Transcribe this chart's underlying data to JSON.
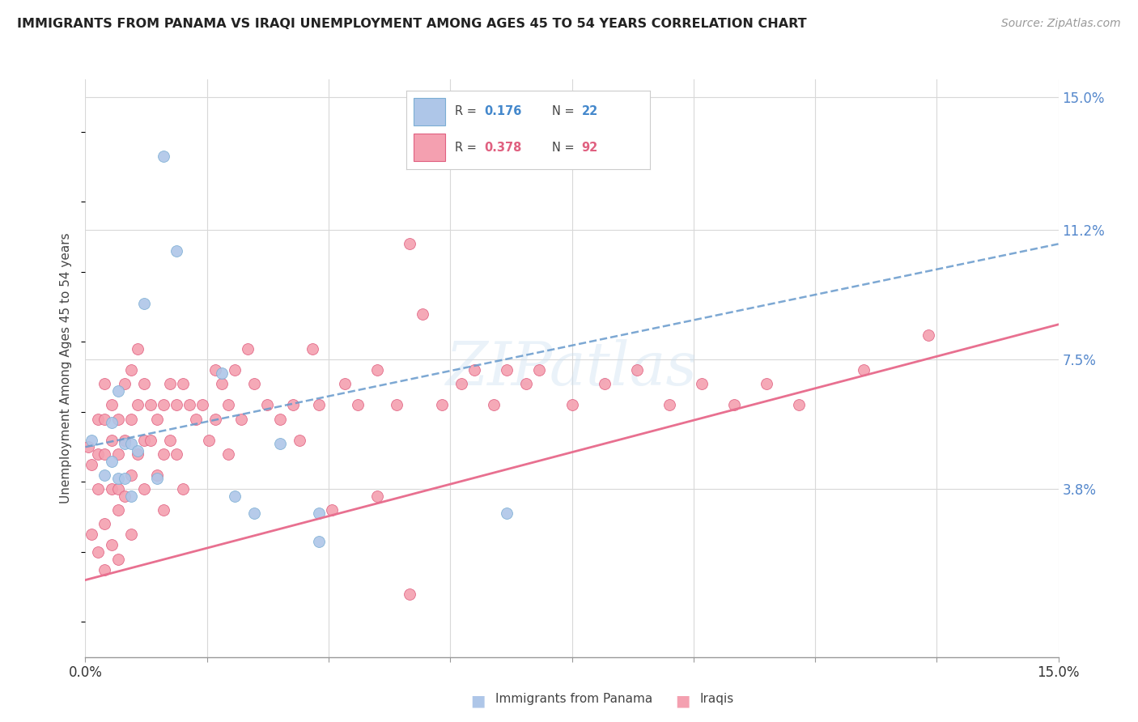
{
  "title": "IMMIGRANTS FROM PANAMA VS IRAQI UNEMPLOYMENT AMONG AGES 45 TO 54 YEARS CORRELATION CHART",
  "source": "Source: ZipAtlas.com",
  "ylabel": "Unemployment Among Ages 45 to 54 years",
  "xlim": [
    0.0,
    0.15
  ],
  "ylim": [
    -0.01,
    0.155
  ],
  "plot_ylim": [
    -0.01,
    0.155
  ],
  "ytick_labels_right": [
    "3.8%",
    "7.5%",
    "11.2%",
    "15.0%"
  ],
  "ytick_vals_right": [
    0.038,
    0.075,
    0.112,
    0.15
  ],
  "watermark": "ZIPatlas",
  "panama_color": "#aec6e8",
  "iraqi_color": "#f4a0b0",
  "panama_edge": "#7baed4",
  "iraqi_edge": "#e06080",
  "trend_panama_color": "#6699cc",
  "trend_iraqi_color": "#e87090",
  "background_color": "#ffffff",
  "grid_color": "#d8d8d8",
  "pan_trend_y0": 0.05,
  "pan_trend_y1": 0.108,
  "irq_trend_y0": 0.012,
  "irq_trend_y1": 0.085,
  "panama_scatter_x": [
    0.001,
    0.003,
    0.004,
    0.004,
    0.005,
    0.005,
    0.006,
    0.006,
    0.007,
    0.007,
    0.008,
    0.009,
    0.011,
    0.012,
    0.014,
    0.021,
    0.023,
    0.026,
    0.03,
    0.036,
    0.036,
    0.065
  ],
  "panama_scatter_y": [
    0.052,
    0.042,
    0.046,
    0.057,
    0.041,
    0.066,
    0.041,
    0.051,
    0.036,
    0.051,
    0.049,
    0.091,
    0.041,
    0.133,
    0.106,
    0.071,
    0.036,
    0.031,
    0.051,
    0.031,
    0.023,
    0.031
  ],
  "iraqi_scatter_x": [
    0.0005,
    0.001,
    0.001,
    0.002,
    0.002,
    0.002,
    0.002,
    0.003,
    0.003,
    0.003,
    0.003,
    0.003,
    0.004,
    0.004,
    0.004,
    0.004,
    0.005,
    0.005,
    0.005,
    0.005,
    0.005,
    0.006,
    0.006,
    0.006,
    0.007,
    0.007,
    0.007,
    0.007,
    0.008,
    0.008,
    0.008,
    0.009,
    0.009,
    0.009,
    0.01,
    0.01,
    0.011,
    0.011,
    0.012,
    0.012,
    0.012,
    0.013,
    0.013,
    0.014,
    0.014,
    0.015,
    0.015,
    0.016,
    0.017,
    0.018,
    0.019,
    0.02,
    0.02,
    0.021,
    0.022,
    0.022,
    0.023,
    0.024,
    0.025,
    0.026,
    0.028,
    0.03,
    0.032,
    0.033,
    0.035,
    0.036,
    0.038,
    0.04,
    0.042,
    0.045,
    0.048,
    0.05,
    0.052,
    0.055,
    0.058,
    0.06,
    0.063,
    0.065,
    0.068,
    0.07,
    0.075,
    0.08,
    0.085,
    0.09,
    0.095,
    0.1,
    0.105,
    0.11,
    0.12,
    0.13,
    0.045,
    0.05
  ],
  "iraqi_scatter_y": [
    0.05,
    0.045,
    0.025,
    0.058,
    0.048,
    0.038,
    0.02,
    0.068,
    0.058,
    0.048,
    0.028,
    0.015,
    0.062,
    0.052,
    0.038,
    0.022,
    0.038,
    0.058,
    0.048,
    0.032,
    0.018,
    0.068,
    0.052,
    0.036,
    0.072,
    0.058,
    0.042,
    0.025,
    0.078,
    0.062,
    0.048,
    0.068,
    0.052,
    0.038,
    0.062,
    0.052,
    0.058,
    0.042,
    0.062,
    0.048,
    0.032,
    0.068,
    0.052,
    0.062,
    0.048,
    0.068,
    0.038,
    0.062,
    0.058,
    0.062,
    0.052,
    0.072,
    0.058,
    0.068,
    0.062,
    0.048,
    0.072,
    0.058,
    0.078,
    0.068,
    0.062,
    0.058,
    0.062,
    0.052,
    0.078,
    0.062,
    0.032,
    0.068,
    0.062,
    0.072,
    0.062,
    0.108,
    0.088,
    0.062,
    0.068,
    0.072,
    0.062,
    0.072,
    0.068,
    0.072,
    0.062,
    0.068,
    0.072,
    0.062,
    0.068,
    0.062,
    0.068,
    0.062,
    0.072,
    0.082,
    0.036,
    0.008
  ]
}
